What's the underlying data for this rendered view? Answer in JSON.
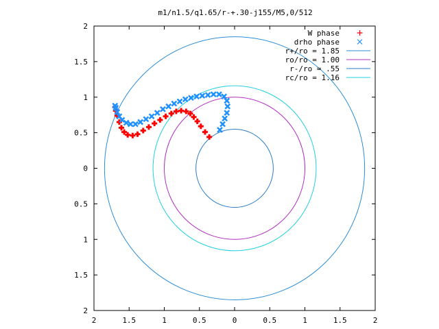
{
  "chart_data": {
    "type": "scatter",
    "title": "m1/n1.5/q1.65/r-+.30-j155/M5,0/512",
    "xlabel": "",
    "ylabel": "",
    "xlim": [
      -2,
      2
    ],
    "ylim": [
      -2,
      2
    ],
    "x_tick_values": [
      -2,
      -1.5,
      -1,
      -0.5,
      0,
      0.5,
      1,
      1.5,
      2
    ],
    "x_tick_labels": [
      "2",
      "1.5",
      "1",
      "0.5",
      "0",
      "0.5",
      "1",
      "1.5",
      "2"
    ],
    "y_tick_values": [
      2,
      1.5,
      1,
      0.5,
      0,
      -0.5,
      -1,
      -1.5,
      -2
    ],
    "y_tick_labels": [
      "2",
      "1.5",
      "1",
      "0.5",
      "0",
      "0.5",
      "1",
      "1.5",
      "2"
    ],
    "grid": false,
    "legend_position": "top-right",
    "series": [
      {
        "name": "W phase",
        "kind": "points",
        "marker": "+",
        "color": "#ff0000",
        "points": [
          [
            -0.36,
            0.44
          ],
          [
            -0.42,
            0.51
          ],
          [
            -0.48,
            0.59
          ],
          [
            -0.53,
            0.66
          ],
          [
            -0.58,
            0.72
          ],
          [
            -0.63,
            0.77
          ],
          [
            -0.69,
            0.8
          ],
          [
            -0.76,
            0.81
          ],
          [
            -0.83,
            0.8
          ],
          [
            -0.9,
            0.77
          ],
          [
            -0.98,
            0.73
          ],
          [
            -1.06,
            0.68
          ],
          [
            -1.14,
            0.63
          ],
          [
            -1.22,
            0.58
          ],
          [
            -1.3,
            0.53
          ],
          [
            -1.38,
            0.48
          ],
          [
            -1.45,
            0.46
          ],
          [
            -1.52,
            0.47
          ],
          [
            -1.57,
            0.51
          ],
          [
            -1.61,
            0.57
          ],
          [
            -1.64,
            0.65
          ],
          [
            -1.67,
            0.74
          ],
          [
            -1.69,
            0.81
          ],
          [
            -1.7,
            0.86
          ]
        ]
      },
      {
        "name": "drho phase",
        "kind": "points",
        "marker": "x",
        "color": "#1e90ff",
        "points": [
          [
            -0.21,
            0.54
          ],
          [
            -0.17,
            0.62
          ],
          [
            -0.14,
            0.7
          ],
          [
            -0.11,
            0.78
          ],
          [
            -0.1,
            0.87
          ],
          [
            -0.11,
            0.95
          ],
          [
            -0.15,
            1.01
          ],
          [
            -0.22,
            1.04
          ],
          [
            -0.3,
            1.04
          ],
          [
            -0.38,
            1.03
          ],
          [
            -0.46,
            1.02
          ],
          [
            -0.54,
            1.01
          ],
          [
            -0.62,
            0.99
          ],
          [
            -0.7,
            0.97
          ],
          [
            -0.78,
            0.94
          ],
          [
            -0.86,
            0.91
          ],
          [
            -0.94,
            0.87
          ],
          [
            -1.02,
            0.83
          ],
          [
            -1.1,
            0.78
          ],
          [
            -1.18,
            0.73
          ],
          [
            -1.26,
            0.69
          ],
          [
            -1.34,
            0.65
          ],
          [
            -1.41,
            0.62
          ],
          [
            -1.48,
            0.62
          ],
          [
            -1.54,
            0.64
          ],
          [
            -1.6,
            0.68
          ],
          [
            -1.64,
            0.73
          ],
          [
            -1.67,
            0.79
          ],
          [
            -1.69,
            0.85
          ],
          [
            -1.7,
            0.88
          ]
        ]
      },
      {
        "name": "r+/ro = 1.85",
        "kind": "circle",
        "radius": 1.85,
        "color": "#2b8cd6"
      },
      {
        "name": "ro/ro = 1.00",
        "kind": "circle",
        "radius": 1.0,
        "color": "#b030c0"
      },
      {
        "name": "r-/ro = .55",
        "kind": "circle",
        "radius": 0.55,
        "color": "#2b7cc8"
      },
      {
        "name": "rc/ro = 1.16",
        "kind": "circle",
        "radius": 1.16,
        "color": "#20d0e0"
      }
    ]
  }
}
